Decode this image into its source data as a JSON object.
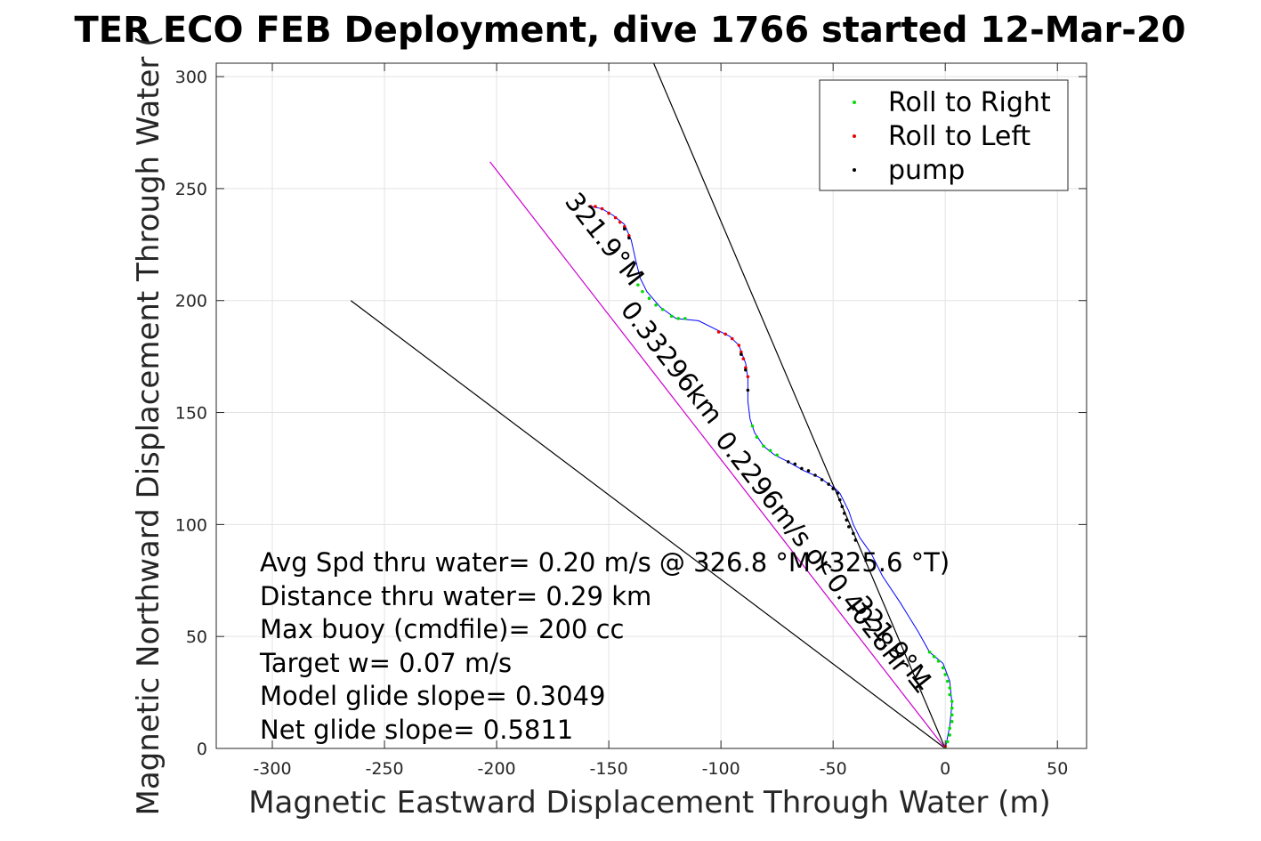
{
  "chart_data": {
    "type": "scatter",
    "title": "TER ECO FEB Deployment, dive 1766 started 12-Mar-20",
    "xlabel": "Magnetic Eastward Displacement Through Water (m)",
    "ylabel": "Magnetic Northward Displacement Through Water (",
    "xlim": [
      -325,
      63
    ],
    "ylim": [
      0,
      306
    ],
    "xticks": [
      -300,
      -250,
      -200,
      -150,
      -100,
      -50,
      0,
      50
    ],
    "yticks": [
      0,
      50,
      100,
      150,
      200,
      250,
      300
    ],
    "grid": true,
    "legend_position": "top-right",
    "legend": [
      {
        "label": "Roll to Right",
        "color": "#00dd00"
      },
      {
        "label": "Roll to Left",
        "color": "#ee0000"
      },
      {
        "label": "pump",
        "color": "#000000"
      }
    ],
    "track": {
      "color": "#0000ff",
      "points": [
        [
          0,
          0
        ],
        [
          2,
          10
        ],
        [
          3,
          20
        ],
        [
          2,
          30
        ],
        [
          -1,
          38
        ],
        [
          -7,
          43
        ],
        [
          -12,
          52
        ],
        [
          -20,
          65
        ],
        [
          -28,
          77
        ],
        [
          -33,
          87
        ],
        [
          -38,
          94
        ],
        [
          -41,
          100
        ],
        [
          -43,
          106
        ],
        [
          -45,
          110
        ],
        [
          -47,
          114
        ],
        [
          -49,
          116
        ],
        [
          -52,
          118
        ],
        [
          -56,
          121
        ],
        [
          -63,
          124
        ],
        [
          -70,
          128
        ],
        [
          -76,
          131
        ],
        [
          -81,
          135
        ],
        [
          -85,
          141
        ],
        [
          -87,
          147
        ],
        [
          -88,
          155
        ],
        [
          -88,
          165
        ],
        [
          -89,
          172
        ],
        [
          -92,
          180
        ],
        [
          -96,
          184
        ],
        [
          -100,
          186
        ],
        [
          -110,
          191
        ],
        [
          -120,
          192
        ],
        [
          -127,
          197
        ],
        [
          -133,
          204
        ],
        [
          -136,
          210
        ],
        [
          -138,
          218
        ],
        [
          -140,
          227
        ],
        [
          -143,
          234
        ],
        [
          -148,
          238
        ],
        [
          -153,
          241
        ],
        [
          -158,
          242
        ]
      ]
    },
    "series": [
      {
        "name": "Roll to Right",
        "color": "#00dd00",
        "points": [
          [
            0,
            0
          ],
          [
            1,
            3
          ],
          [
            2,
            6
          ],
          [
            2,
            9
          ],
          [
            3,
            12
          ],
          [
            3,
            15
          ],
          [
            3,
            18
          ],
          [
            3,
            21
          ],
          [
            2,
            24
          ],
          [
            2,
            27
          ],
          [
            1,
            30
          ],
          [
            0,
            33
          ],
          [
            -1,
            36
          ],
          [
            -3,
            39
          ],
          [
            -5,
            41
          ],
          [
            -7,
            43
          ],
          [
            -126,
            196
          ],
          [
            -129,
            198
          ],
          [
            -132,
            201
          ],
          [
            -135,
            204
          ],
          [
            -137,
            207
          ],
          [
            -122,
            193
          ],
          [
            -119,
            192
          ],
          [
            -116,
            192
          ],
          [
            -84,
            139
          ],
          [
            -81,
            135
          ],
          [
            -78,
            133
          ],
          [
            -75,
            131
          ],
          [
            -86,
            144
          ]
        ]
      },
      {
        "name": "Roll to Left",
        "color": "#ee0000",
        "points": [
          [
            -158,
            242
          ],
          [
            -156,
            242
          ],
          [
            -153,
            241
          ],
          [
            -150,
            239
          ],
          [
            -147,
            237
          ],
          [
            -145,
            235
          ],
          [
            -143,
            233
          ],
          [
            -141,
            229
          ],
          [
            -101,
            186
          ],
          [
            -98,
            185
          ],
          [
            -95,
            183
          ],
          [
            -92,
            180
          ],
          [
            -91,
            177
          ],
          [
            -90,
            174
          ],
          [
            -89,
            170
          ],
          [
            -88,
            166
          ],
          [
            0,
            1
          ]
        ]
      },
      {
        "name": "pump",
        "color": "#000000",
        "points": [
          [
            -70,
            128
          ],
          [
            -67,
            127
          ],
          [
            -64,
            125
          ],
          [
            -61,
            124
          ],
          [
            -58,
            122
          ],
          [
            -55,
            120
          ],
          [
            -52,
            118
          ],
          [
            -50,
            116
          ],
          [
            -48,
            114
          ],
          [
            -47,
            111
          ],
          [
            -46,
            108
          ],
          [
            -45,
            105
          ],
          [
            -44,
            102
          ],
          [
            -43,
            99
          ],
          [
            -41,
            96
          ],
          [
            -40,
            93
          ],
          [
            -141,
            228
          ],
          [
            -143,
            232
          ],
          [
            -91,
            176
          ],
          [
            -89,
            169
          ],
          [
            -88,
            160
          ]
        ]
      }
    ],
    "reference_lines": [
      {
        "color": "#000000",
        "from": [
          0,
          0
        ],
        "to": [
          -130,
          306
        ]
      },
      {
        "color": "#000000",
        "from": [
          0,
          0
        ],
        "to": [
          -265,
          200
        ]
      },
      {
        "color": "#cc00cc",
        "from": [
          0,
          0
        ],
        "to": [
          -203,
          262
        ]
      }
    ],
    "annotations": [
      {
        "text": "321.9°M",
        "x": -155,
        "y": 225,
        "angle": 52
      },
      {
        "text": "0.33296km",
        "x": -125,
        "y": 170,
        "angle": 52
      },
      {
        "text": "0.2296m/s or 0.4028hr =",
        "x": -58,
        "y": 80,
        "angle": 52
      },
      {
        "text": "321.9°M",
        "x": -27,
        "y": 45,
        "angle": 52
      }
    ],
    "stats_text": [
      "Avg Spd thru water=  0.20 m/s @ 326.8 °M (325.6 °T)",
      "Distance thru water=  0.29 km",
      "Max buoy (cmdfile)= 200 cc",
      "Target w= 0.07 m/s",
      "Model glide slope= 0.3049",
      "Net glide slope= 0.5811"
    ]
  }
}
